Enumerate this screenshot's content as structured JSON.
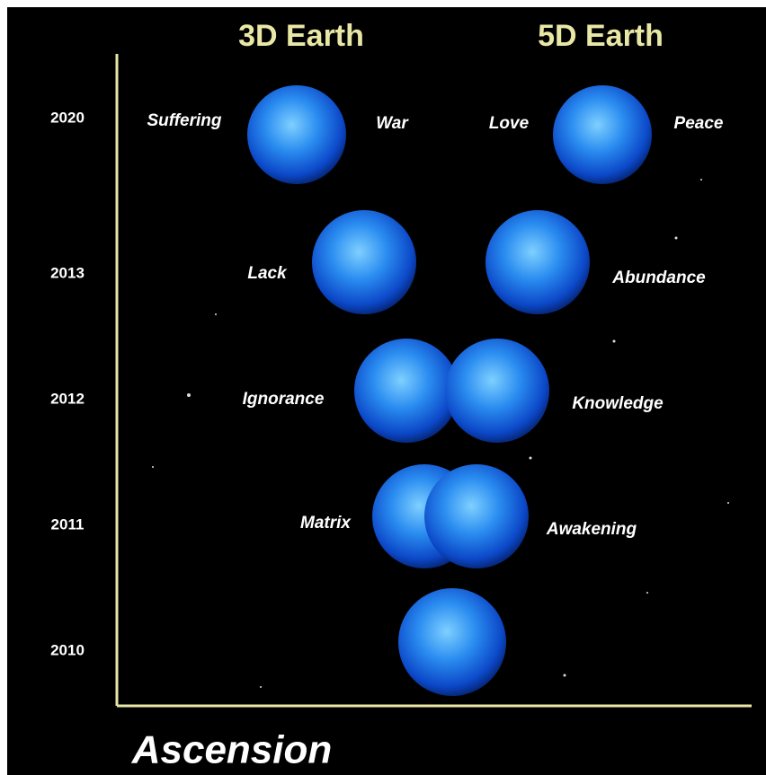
{
  "headers": [
    "3D Earth",
    "5D Earth"
  ],
  "years": [
    "2020",
    "2013",
    "2012",
    "2011",
    "2010"
  ],
  "labels": [
    "Suffering",
    "War",
    "Love",
    "Peace",
    "Lack",
    "Abundance",
    "Ignorance",
    "Knowledge",
    "Matrix",
    "Awakening"
  ],
  "footer": "Ascension"
}
